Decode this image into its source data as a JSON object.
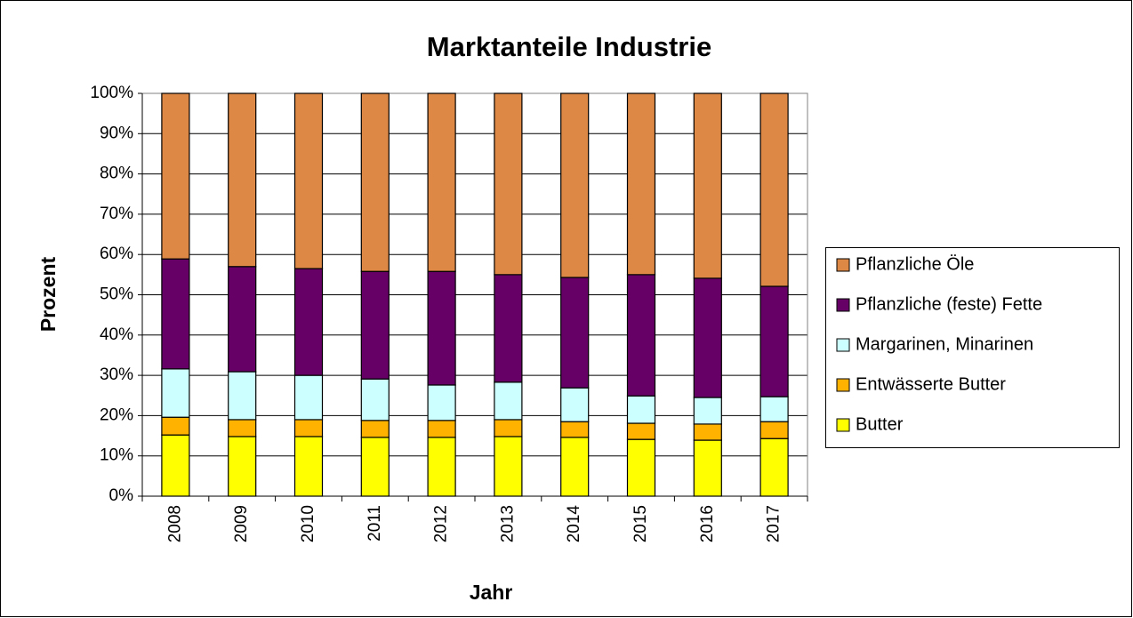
{
  "chart_data": {
    "type": "stacked_bar",
    "title": "Marktanteile Industrie",
    "x_label": "Jahr",
    "y_label": "Prozent",
    "categories": [
      "2008",
      "2009",
      "2010",
      "2011",
      "2012",
      "2013",
      "2014",
      "2015",
      "2016",
      "2017"
    ],
    "series": [
      {
        "name": "Butter",
        "color": "#ffff00",
        "values": [
          15.2,
          14.8,
          14.8,
          14.6,
          14.6,
          14.8,
          14.6,
          14.1,
          13.9,
          14.3
        ]
      },
      {
        "name": "Entwässerte Butter",
        "color": "#ffb300",
        "values": [
          4.4,
          4.2,
          4.2,
          4.2,
          4.2,
          4.2,
          3.9,
          4.0,
          4.0,
          4.2
        ]
      },
      {
        "name": "Margarinen, Minarinen",
        "color": "#ccffff",
        "values": [
          12.0,
          11.9,
          11.0,
          10.3,
          8.8,
          9.3,
          8.4,
          6.8,
          6.6,
          6.2
        ]
      },
      {
        "name": "Pflanzliche (feste) Fette",
        "color": "#660066",
        "values": [
          27.3,
          26.1,
          26.5,
          26.7,
          28.2,
          26.7,
          27.4,
          30.1,
          29.6,
          27.4
        ]
      },
      {
        "name": "Pflanzliche Öle",
        "color": "#dd8844",
        "values": [
          41.1,
          43.0,
          43.5,
          44.2,
          44.2,
          45.0,
          45.7,
          45.0,
          45.9,
          47.9
        ]
      }
    ],
    "ylim": [
      0,
      100
    ],
    "yticks": [
      {
        "value": 0,
        "label": "0%"
      },
      {
        "value": 10,
        "label": "10%"
      },
      {
        "value": 20,
        "label": "20%"
      },
      {
        "value": 30,
        "label": "30%"
      },
      {
        "value": 40,
        "label": "40%"
      },
      {
        "value": 50,
        "label": "50%"
      },
      {
        "value": 60,
        "label": "60%"
      },
      {
        "value": 70,
        "label": "70%"
      },
      {
        "value": 80,
        "label": "80%"
      },
      {
        "value": 90,
        "label": "90%"
      },
      {
        "value": 100,
        "label": "100%"
      }
    ],
    "grid": true,
    "legend": "right"
  }
}
